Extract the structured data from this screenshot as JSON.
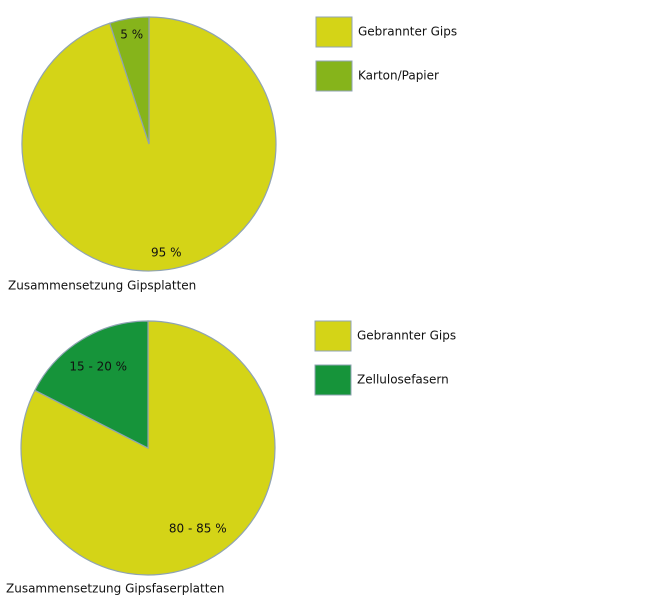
{
  "chart_data": [
    {
      "type": "pie",
      "title": "Zusammensetzung Gipsplatten",
      "categories": [
        "Gebrannter Gips",
        "Karton/Papier"
      ],
      "values": [
        95,
        5
      ],
      "value_labels": [
        "95 %",
        "5 %"
      ],
      "colors": [
        "#d4d417",
        "#86b41b"
      ]
    },
    {
      "type": "pie",
      "title": "Zusammensetzung Gipsfaserplatten",
      "categories": [
        "Gebrannter Gips",
        "Zellulosefasern"
      ],
      "values": [
        82.5,
        17.5
      ],
      "value_labels": [
        "80 - 85 %",
        "15 - 20 %"
      ],
      "colors": [
        "#d4d417",
        "#16943a"
      ]
    }
  ]
}
